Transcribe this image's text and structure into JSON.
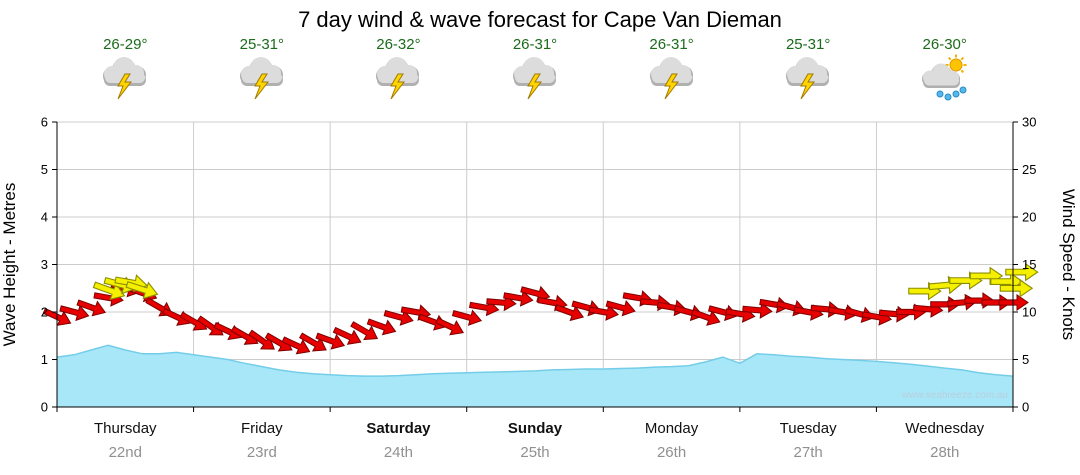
{
  "title": "7 day wind & wave forecast for Cape Van Dieman",
  "watermark": "www.seabreeze.com.au",
  "colors": {
    "temp_text": "#1a6b1a",
    "wave_fill": "#a8e7f8",
    "wave_edge": "#74cde8",
    "arrow_red_fill": "#e60000",
    "arrow_red_edge": "#7d0000",
    "arrow_yellow_fill": "#f4f000",
    "arrow_yellow_edge": "#8c8c00",
    "grid": "#cccccc",
    "axis": "#000000",
    "day_text": "#111111",
    "date_text": "#909090",
    "watermark_text": "#b9cfdd"
  },
  "forecast_days": [
    {
      "name": "Thursday",
      "date": "22nd",
      "temp": "26-29°",
      "icon": "storm",
      "bold": false
    },
    {
      "name": "Friday",
      "date": "23rd",
      "temp": "25-31°",
      "icon": "storm",
      "bold": false
    },
    {
      "name": "Saturday",
      "date": "24th",
      "temp": "26-32°",
      "icon": "storm",
      "bold": true
    },
    {
      "name": "Sunday",
      "date": "25th",
      "temp": "26-31°",
      "icon": "storm",
      "bold": true
    },
    {
      "name": "Monday",
      "date": "26th",
      "temp": "26-31°",
      "icon": "storm",
      "bold": false
    },
    {
      "name": "Tuesday",
      "date": "27th",
      "temp": "25-31°",
      "icon": "storm",
      "bold": false
    },
    {
      "name": "Wednesday",
      "date": "28th",
      "temp": "26-30°",
      "icon": "sun-shower",
      "bold": false
    }
  ],
  "axes": {
    "left_label": "Wave Height - Metres",
    "left_ticks": [
      0,
      1,
      2,
      3,
      4,
      5,
      6
    ],
    "left_range": [
      0,
      6
    ],
    "right_label": "Wind Speed - Knots",
    "right_ticks": [
      0,
      5,
      10,
      15,
      20,
      25,
      30
    ],
    "right_range": [
      0,
      30
    ],
    "grid": true
  },
  "chart_data": {
    "type": "area",
    "categories": [
      "Thursday",
      "Friday",
      "Saturday",
      "Sunday",
      "Monday",
      "Tuesday",
      "Wednesday"
    ],
    "interval_hours": 3,
    "wave_height_m": {
      "name": "Wave Height (m)",
      "values": [
        1.05,
        1.1,
        1.2,
        1.3,
        1.2,
        1.12,
        1.12,
        1.15,
        1.1,
        1.05,
        1.0,
        0.92,
        0.85,
        0.78,
        0.73,
        0.7,
        0.68,
        0.66,
        0.65,
        0.65,
        0.66,
        0.68,
        0.7,
        0.71,
        0.72,
        0.73,
        0.74,
        0.75,
        0.76,
        0.78,
        0.79,
        0.8,
        0.8,
        0.81,
        0.82,
        0.84,
        0.85,
        0.87,
        0.95,
        1.05,
        0.92,
        1.12,
        1.1,
        1.07,
        1.05,
        1.02,
        1.0,
        0.98,
        0.96,
        0.93,
        0.9,
        0.86,
        0.82,
        0.78,
        0.72,
        0.68,
        0.65
      ]
    },
    "wind": {
      "name": "Wind Speed (knots), shown as direction arrows",
      "arrow_color": "red",
      "knots": [
        9.5,
        10,
        10.5,
        11.5,
        12.5,
        12,
        10.5,
        9.5,
        9,
        8.5,
        8,
        7.5,
        7,
        6.8,
        6.5,
        6.8,
        7,
        7.5,
        8,
        8.5,
        9.5,
        10,
        9,
        8.5,
        9.5,
        10.5,
        11,
        11.5,
        12,
        11,
        10,
        10.5,
        10,
        10.5,
        11.5,
        11,
        10.5,
        10,
        9.5,
        10,
        9.8,
        10.2,
        10.8,
        10.5,
        10,
        10.3,
        10,
        9.8,
        9.5,
        9.8,
        10,
        10.3,
        10.8,
        11,
        11.2,
        11,
        11
      ],
      "dir_deg": [
        25,
        15,
        20,
        10,
        15,
        20,
        30,
        25,
        30,
        35,
        25,
        30,
        35,
        30,
        25,
        30,
        20,
        25,
        30,
        20,
        15,
        10,
        20,
        25,
        15,
        10,
        5,
        10,
        15,
        10,
        20,
        15,
        10,
        15,
        10,
        5,
        10,
        15,
        20,
        15,
        10,
        5,
        10,
        15,
        10,
        5,
        10,
        15,
        10,
        5,
        0,
        5,
        0,
        -5,
        0,
        0,
        0
      ]
    },
    "strong_wind_arrows": [
      {
        "t": 0.38,
        "kn": 12.3,
        "dir": 20
      },
      {
        "t": 0.46,
        "kn": 12.9,
        "dir": 15
      },
      {
        "t": 0.54,
        "kn": 13.1,
        "dir": 10
      },
      {
        "t": 0.62,
        "kn": 12.4,
        "dir": 18
      },
      {
        "t": 6.35,
        "kn": 12.2,
        "dir": 0
      },
      {
        "t": 6.5,
        "kn": 12.8,
        "dir": -5
      },
      {
        "t": 6.65,
        "kn": 13.3,
        "dir": 0
      },
      {
        "t": 6.8,
        "kn": 13.8,
        "dir": 0
      },
      {
        "t": 6.95,
        "kn": 13.2,
        "dir": 0
      },
      {
        "t": 7.02,
        "kn": 12.5,
        "dir": 0
      },
      {
        "t": 7.06,
        "kn": 14.2,
        "dir": 0
      }
    ]
  }
}
